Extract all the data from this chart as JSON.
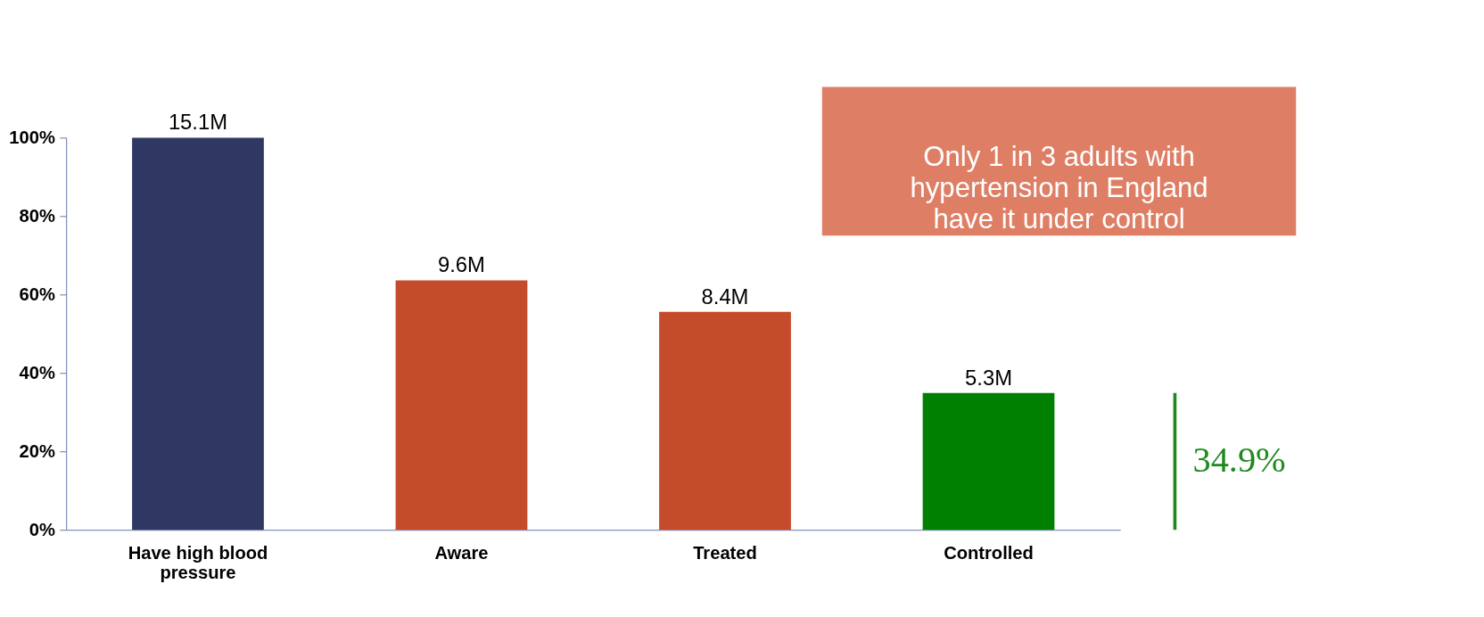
{
  "chart_data": {
    "type": "bar",
    "categories": [
      "Have high blood pressure",
      "Aware",
      "Treated",
      "Controlled"
    ],
    "values": [
      100,
      63.6,
      55.6,
      34.9
    ],
    "colors": [
      "#2e3862",
      "#c44c2a",
      "#c44c2a",
      "#008000"
    ],
    "ylim": [
      0,
      100
    ],
    "yticks": [
      {
        "value": 0,
        "label": "0%"
      },
      {
        "value": 20,
        "label": "20%"
      },
      {
        "value": 40,
        "label": "40%"
      },
      {
        "value": 60,
        "label": "60%"
      },
      {
        "value": 80,
        "label": "80%"
      },
      {
        "value": 100,
        "label": "100%"
      }
    ],
    "grid": false,
    "annotations": [
      "Only 1 in 3 adults with\nhypertension in England\nhave it under control",
      "34.9%",
      {
        "text": "15.1M",
        "x": "Have high blood pressure",
        "y": 100
      },
      {
        "text": "9.6M",
        "x": "Aware",
        "y": 63.6
      },
      {
        "text": "8.4M",
        "x": "Treated",
        "y": 55.6
      },
      {
        "text": "5.3M",
        "x": "Controlled",
        "y": 34.9
      }
    ]
  }
}
